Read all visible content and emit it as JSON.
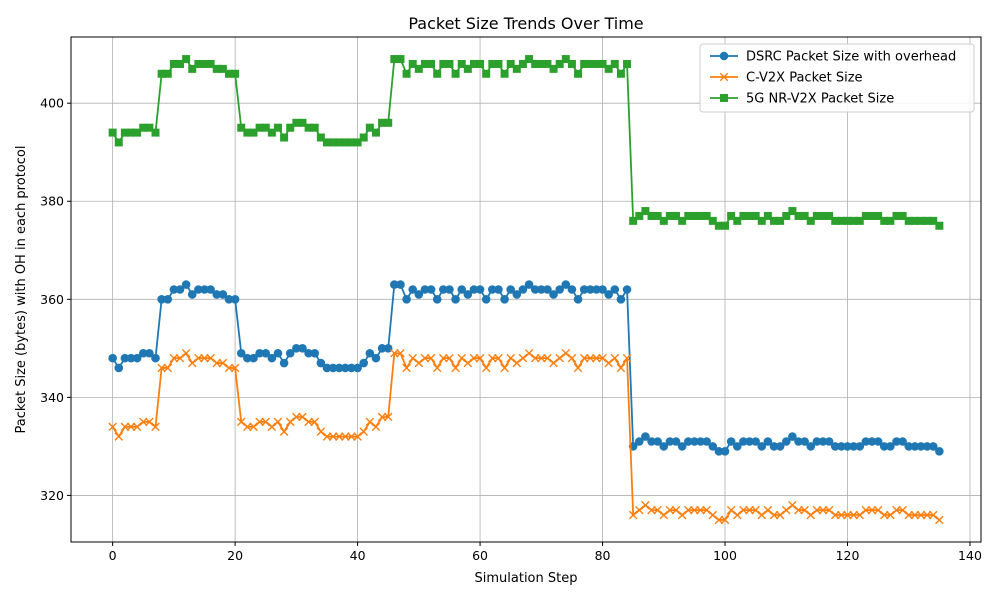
{
  "chart_data": {
    "type": "line",
    "title": "Packet Size Trends Over Time",
    "xlabel": "Simulation Step",
    "ylabel": "Packet Size (bytes) with OH in each protocol",
    "xlim": [
      -6.8,
      141.8
    ],
    "ylim": [
      310.5,
      413.5
    ],
    "xticks": [
      0,
      20,
      40,
      60,
      80,
      100,
      120,
      140
    ],
    "yticks": [
      320,
      340,
      360,
      380,
      400
    ],
    "grid": true,
    "legend_position": "top-right",
    "series": [
      {
        "name": "DSRC Packet Size with overhead",
        "color": "#1f77b4",
        "marker": "circle",
        "values": [
          348,
          346,
          348,
          348,
          348,
          349,
          349,
          348,
          360,
          360,
          362,
          362,
          363,
          361,
          362,
          362,
          362,
          361,
          361,
          360,
          360,
          349,
          348,
          348,
          349,
          349,
          348,
          349,
          347,
          349,
          350,
          350,
          349,
          349,
          347,
          346,
          346,
          346,
          346,
          346,
          346,
          347,
          349,
          348,
          350,
          350,
          363,
          363,
          360,
          362,
          361,
          362,
          362,
          360,
          362,
          362,
          360,
          362,
          361,
          362,
          362,
          360,
          362,
          362,
          360,
          362,
          361,
          362,
          363,
          362,
          362,
          362,
          361,
          362,
          363,
          362,
          360,
          362,
          362,
          362,
          362,
          361,
          362,
          360,
          362,
          330,
          331,
          332,
          331,
          331,
          330,
          331,
          331,
          330,
          331,
          331,
          331,
          331,
          330,
          329,
          329,
          331,
          330,
          331,
          331,
          331,
          330,
          331,
          330,
          330,
          331,
          332,
          331,
          331,
          330,
          331,
          331,
          331,
          330,
          330,
          330,
          330,
          330,
          331,
          331,
          331,
          330,
          330,
          331,
          331,
          330,
          330,
          330,
          330,
          330,
          329
        ]
      },
      {
        "name": "C-V2X Packet Size",
        "color": "#ff7f0e",
        "marker": "x",
        "values": [
          334,
          332,
          334,
          334,
          334,
          335,
          335,
          334,
          346,
          346,
          348,
          348,
          349,
          347,
          348,
          348,
          348,
          347,
          347,
          346,
          346,
          335,
          334,
          334,
          335,
          335,
          334,
          335,
          333,
          335,
          336,
          336,
          335,
          335,
          333,
          332,
          332,
          332,
          332,
          332,
          332,
          333,
          335,
          334,
          336,
          336,
          349,
          349,
          346,
          348,
          347,
          348,
          348,
          346,
          348,
          348,
          346,
          348,
          347,
          348,
          348,
          346,
          348,
          348,
          346,
          348,
          347,
          348,
          349,
          348,
          348,
          348,
          347,
          348,
          349,
          348,
          346,
          348,
          348,
          348,
          348,
          347,
          348,
          346,
          348,
          316,
          317,
          318,
          317,
          317,
          316,
          317,
          317,
          316,
          317,
          317,
          317,
          317,
          316,
          315,
          315,
          317,
          316,
          317,
          317,
          317,
          316,
          317,
          316,
          316,
          317,
          318,
          317,
          317,
          316,
          317,
          317,
          317,
          316,
          316,
          316,
          316,
          316,
          317,
          317,
          317,
          316,
          316,
          317,
          317,
          316,
          316,
          316,
          316,
          316,
          315
        ]
      },
      {
        "name": "5G NR-V2X Packet Size",
        "color": "#2ca02c",
        "marker": "square",
        "values": [
          394,
          392,
          394,
          394,
          394,
          395,
          395,
          394,
          406,
          406,
          408,
          408,
          409,
          407,
          408,
          408,
          408,
          407,
          407,
          406,
          406,
          395,
          394,
          394,
          395,
          395,
          394,
          395,
          393,
          395,
          396,
          396,
          395,
          395,
          393,
          392,
          392,
          392,
          392,
          392,
          392,
          393,
          395,
          394,
          396,
          396,
          409,
          409,
          406,
          408,
          407,
          408,
          408,
          406,
          408,
          408,
          406,
          408,
          407,
          408,
          408,
          406,
          408,
          408,
          406,
          408,
          407,
          408,
          409,
          408,
          408,
          408,
          407,
          408,
          409,
          408,
          406,
          408,
          408,
          408,
          408,
          407,
          408,
          406,
          408,
          376,
          377,
          378,
          377,
          377,
          376,
          377,
          377,
          376,
          377,
          377,
          377,
          377,
          376,
          375,
          375,
          377,
          376,
          377,
          377,
          377,
          376,
          377,
          376,
          376,
          377,
          378,
          377,
          377,
          376,
          377,
          377,
          377,
          376,
          376,
          376,
          376,
          376,
          377,
          377,
          377,
          376,
          376,
          377,
          377,
          376,
          376,
          376,
          376,
          376,
          375
        ]
      }
    ]
  }
}
